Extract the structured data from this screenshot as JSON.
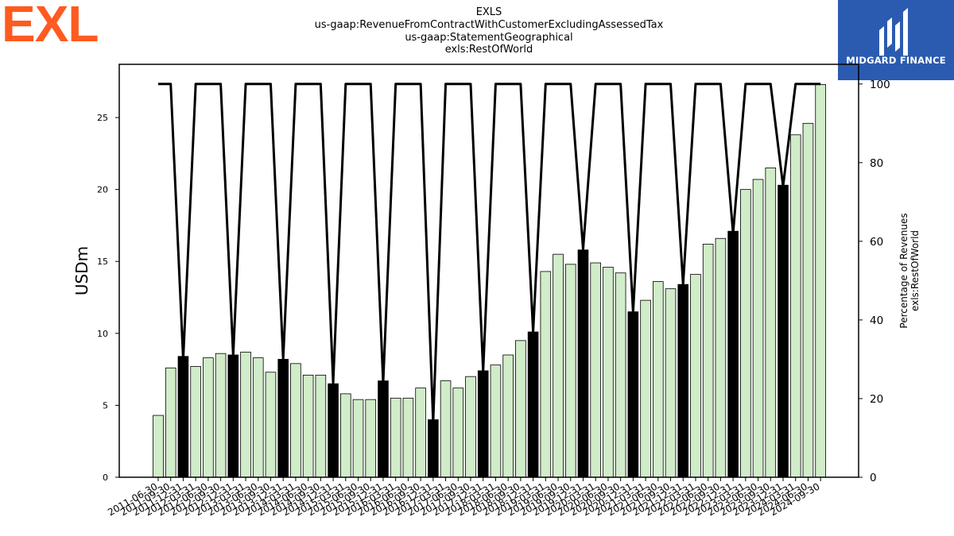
{
  "logo_left": {
    "text": "EXL",
    "color": "#FF5A1F"
  },
  "logo_right": {
    "text": "MIDGARD FINANCE",
    "background": "#2B5BB0"
  },
  "title_lines": [
    "EXLS",
    "us-gaap:RevenueFromContractWithCustomerExcludingAssessedTax",
    "us-gaap:StatementGeographical",
    "exls:RestOfWorld"
  ],
  "chart_data": {
    "type": "bar",
    "ylabel": "USDm",
    "ylabel_right": [
      "Percentage of Revenues",
      "exls:RestOfWorld"
    ],
    "ylim": [
      0,
      28.7
    ],
    "ylim_right": [
      0,
      105
    ],
    "yticks": [
      0,
      5,
      10,
      15,
      20,
      25
    ],
    "yticks_right": [
      0,
      20,
      40,
      60,
      80,
      100
    ],
    "colors": {
      "quarter_bar": "#d0ecc8",
      "annual_bar": "#000000",
      "bar_edge": "#000000",
      "line": "#000000"
    },
    "categories": [
      "2011-06-30",
      "2011-09-30",
      "2011-12-31",
      "2012-03-31",
      "2012-06-30",
      "2012-09-30",
      "2012-12-31",
      "2013-03-31",
      "2013-06-30",
      "2013-09-30",
      "2013-12-31",
      "2014-03-31",
      "2014-06-30",
      "2014-09-30",
      "2014-12-31",
      "2015-03-31",
      "2015-06-30",
      "2015-09-30",
      "2015-12-31",
      "2016-03-31",
      "2016-06-30",
      "2016-09-30",
      "2016-12-31",
      "2017-03-31",
      "2017-06-30",
      "2017-09-30",
      "2017-12-31",
      "2018-03-31",
      "2018-06-30",
      "2018-09-30",
      "2018-12-31",
      "2019-03-31",
      "2019-06-30",
      "2019-09-30",
      "2019-12-31",
      "2020-03-31",
      "2020-06-30",
      "2020-09-30",
      "2020-12-31",
      "2021-03-31",
      "2021-06-30",
      "2021-09-30",
      "2021-12-31",
      "2022-03-31",
      "2022-06-30",
      "2022-09-30",
      "2022-12-31",
      "2023-03-31",
      "2023-06-30",
      "2023-09-30",
      "2023-12-31",
      "2024-03-31",
      "2024-06-30",
      "2024-09-30"
    ],
    "series": [
      {
        "values": [
          4.3,
          7.6,
          8.4,
          7.7,
          8.3,
          8.6,
          8.5,
          8.7,
          8.3,
          7.3,
          8.2,
          7.9,
          7.1,
          7.1,
          6.5,
          5.8,
          5.4,
          5.4,
          6.7,
          5.5,
          5.5,
          6.2,
          4.0,
          6.7,
          6.2,
          7.0,
          7.4,
          7.8,
          8.5,
          9.5,
          10.1,
          14.3,
          15.5,
          14.8,
          15.8,
          14.9,
          14.6,
          14.2,
          11.5,
          12.3,
          13.6,
          13.1,
          13.4,
          14.1,
          16.2,
          16.6,
          17.1,
          20.0,
          20.7,
          21.5,
          20.3,
          23.8,
          24.6,
          27.3
        ],
        "annual": [
          false,
          false,
          true,
          false,
          false,
          false,
          true,
          false,
          false,
          false,
          true,
          false,
          false,
          false,
          true,
          false,
          false,
          false,
          true,
          false,
          false,
          false,
          true,
          false,
          false,
          false,
          true,
          false,
          false,
          false,
          true,
          false,
          false,
          false,
          true,
          false,
          false,
          false,
          true,
          false,
          false,
          false,
          true,
          false,
          false,
          false,
          true,
          false,
          false,
          false,
          true,
          false,
          false,
          false
        ]
      },
      {
        "axis": "right",
        "type": "line",
        "values": [
          100,
          100,
          30,
          100,
          100,
          100,
          31,
          100,
          100,
          100,
          30,
          100,
          100,
          100,
          24,
          100,
          100,
          100,
          24,
          100,
          100,
          100,
          14,
          100,
          100,
          100,
          27,
          100,
          100,
          100,
          37,
          100,
          100,
          100,
          58,
          100,
          100,
          100,
          42,
          100,
          100,
          100,
          49,
          100,
          100,
          100,
          62,
          100,
          100,
          100,
          74,
          100,
          100,
          100
        ]
      }
    ]
  }
}
